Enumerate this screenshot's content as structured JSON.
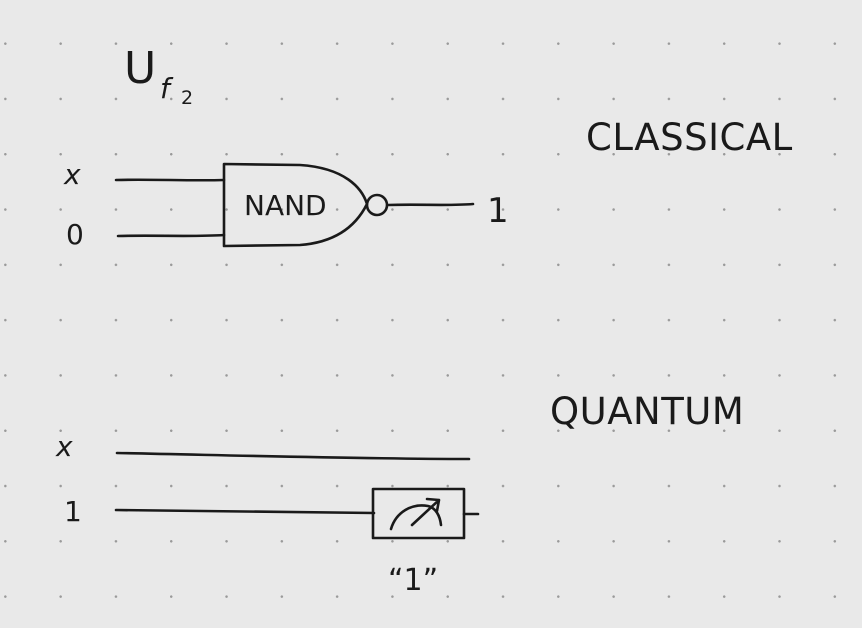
{
  "title": {
    "main": "U",
    "subscript_letter": "f",
    "subscript_index": "2"
  },
  "classical": {
    "heading": "CLASSICAL",
    "input_top": "x",
    "input_bottom": "0",
    "gate_label": "NAND",
    "output": "1"
  },
  "quantum": {
    "heading": "QUANTUM",
    "input_top": "x",
    "input_bottom": "1",
    "measurement_result": "“1”"
  },
  "colors": {
    "ink": "#1a1a1a",
    "paper": "#e9e9e9",
    "grid_dot": "#9a9a9a"
  },
  "icons": [
    "measurement-meter-icon",
    "inverter-bubble-icon"
  ]
}
